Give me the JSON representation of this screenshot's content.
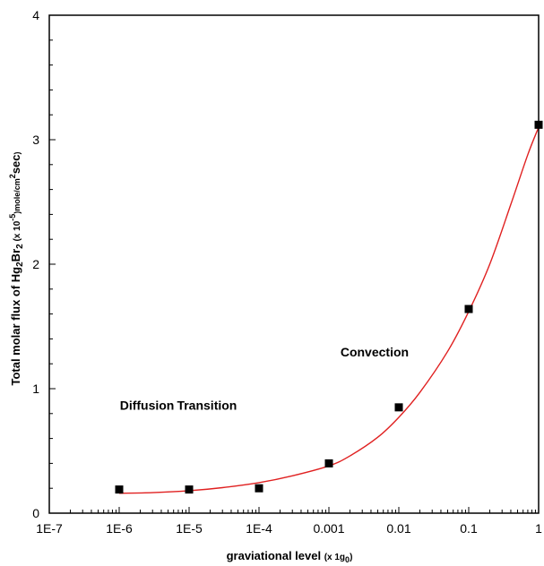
{
  "chart_data": {
    "type": "scatter",
    "title": "",
    "xscale": "log",
    "xlim": [
      1e-07,
      1
    ],
    "ylim": [
      0,
      4
    ],
    "grid": false,
    "xlabel": {
      "main": "graviational level ",
      "paren_open": "(x 1g",
      "sub": "0",
      "paren_close": ")"
    },
    "ylabel": {
      "part1": "Total molar flux of Hg",
      "sub1": "2",
      "part2": "Br",
      "sub2": "2",
      "part3": " (x 10",
      "sup1": "-5",
      "part4": ")mole/cm",
      "sup2": "2",
      "part5": "sec",
      "part6": ")"
    },
    "xticks": [
      {
        "value": 1e-07,
        "label": "1E-7"
      },
      {
        "value": 1e-06,
        "label": "1E-6"
      },
      {
        "value": 1e-05,
        "label": "1E-5"
      },
      {
        "value": 0.0001,
        "label": "1E-4"
      },
      {
        "value": 0.001,
        "label": "0.001"
      },
      {
        "value": 0.01,
        "label": "0.01"
      },
      {
        "value": 0.1,
        "label": "0.1"
      },
      {
        "value": 1,
        "label": "1"
      }
    ],
    "yticks": [
      {
        "value": 0,
        "label": "0"
      },
      {
        "value": 1,
        "label": "1"
      },
      {
        "value": 2,
        "label": "2"
      },
      {
        "value": 3,
        "label": "3"
      },
      {
        "value": 4,
        "label": "4"
      }
    ],
    "series": [
      {
        "marker": "square",
        "color": "#000000",
        "x": [
          1e-06,
          1e-05,
          0.0001,
          0.001,
          0.01,
          0.1,
          1
        ],
        "y": [
          0.19,
          0.19,
          0.2,
          0.4,
          0.85,
          1.64,
          3.12
        ]
      }
    ],
    "fit_curve": {
      "color": "#e02020",
      "x": [
        1e-06,
        3e-06,
        1e-05,
        3e-05,
        0.0001,
        0.0003,
        0.001,
        0.002,
        0.005,
        0.01,
        0.02,
        0.05,
        0.1,
        0.2,
        0.4,
        0.7,
        1
      ],
      "y": [
        0.16,
        0.165,
        0.18,
        0.205,
        0.245,
        0.3,
        0.38,
        0.46,
        0.61,
        0.77,
        0.97,
        1.3,
        1.62,
        2.0,
        2.48,
        2.88,
        3.1
      ]
    },
    "annotations": [
      {
        "text": "Diffusion",
        "x": 2.5e-06,
        "y": 0.83
      },
      {
        "text": "Transition",
        "x": 1.8e-05,
        "y": 0.83
      },
      {
        "text": "Convection",
        "x": 0.0045,
        "y": 1.26
      }
    ]
  }
}
